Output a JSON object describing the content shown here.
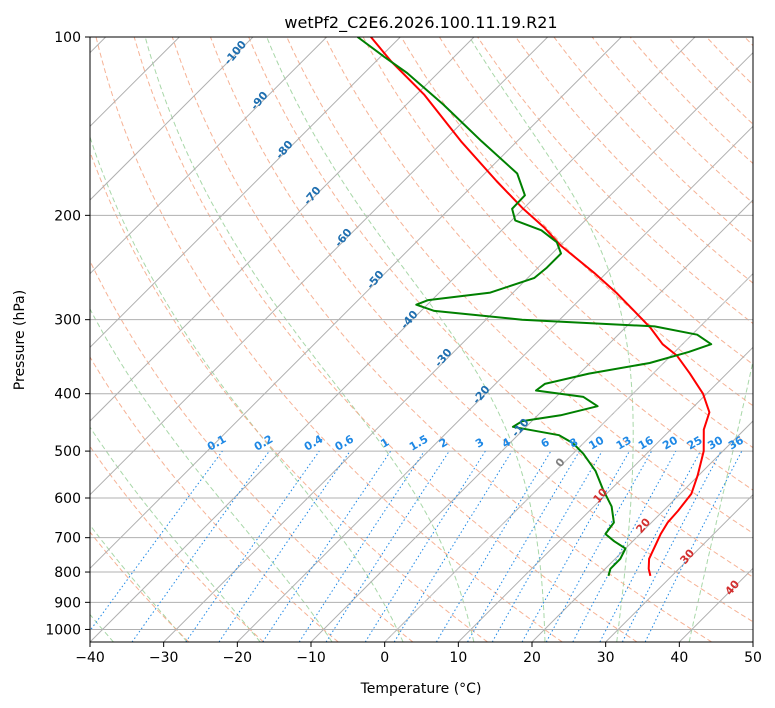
{
  "chart_data": {
    "type": "line",
    "title": "wetPf2_C2E6.2026.100.11.19.R21",
    "xlabel": "Temperature (°C)",
    "ylabel": "Pressure (hPa)",
    "xlim": [
      -40,
      50
    ],
    "ylim": [
      1050,
      100
    ],
    "y_scale": "log",
    "x_ticks": [
      -40,
      -30,
      -20,
      -10,
      0,
      10,
      20,
      30,
      40,
      50
    ],
    "y_ticks": [
      100,
      200,
      300,
      400,
      500,
      600,
      700,
      800,
      900,
      1000
    ],
    "skew_degrees": 45,
    "grid": true,
    "series": [
      {
        "color": "#ff0000",
        "points": [
          {
            "p": 812,
            "t": 27.1
          },
          {
            "p": 790,
            "t": 25.9
          },
          {
            "p": 760,
            "t": 24.6
          },
          {
            "p": 720,
            "t": 23.6
          },
          {
            "p": 690,
            "t": 22.8
          },
          {
            "p": 660,
            "t": 22.2
          },
          {
            "p": 630,
            "t": 22.0
          },
          {
            "p": 590,
            "t": 21.5
          },
          {
            "p": 550,
            "t": 19.9
          },
          {
            "p": 500,
            "t": 17.4
          },
          {
            "p": 460,
            "t": 14.5
          },
          {
            "p": 430,
            "t": 12.9
          },
          {
            "p": 400,
            "t": 9.5
          },
          {
            "p": 370,
            "t": 5.0
          },
          {
            "p": 345,
            "t": 0.8
          },
          {
            "p": 330,
            "t": -2.7
          },
          {
            "p": 310,
            "t": -6.5
          },
          {
            "p": 295,
            "t": -9.9
          },
          {
            "p": 270,
            "t": -16.0
          },
          {
            "p": 250,
            "t": -21.7
          },
          {
            "p": 225,
            "t": -29.9
          },
          {
            "p": 210,
            "t": -34.5
          },
          {
            "p": 195,
            "t": -40.0
          },
          {
            "p": 175,
            "t": -47.4
          },
          {
            "p": 150,
            "t": -57.6
          },
          {
            "p": 125,
            "t": -69.0
          },
          {
            "p": 110,
            "t": -77.9
          },
          {
            "p": 100,
            "t": -84.0
          }
        ]
      },
      {
        "color": "#008000",
        "points": [
          {
            "p": 812,
            "t": 21.4
          },
          {
            "p": 790,
            "t": 20.7
          },
          {
            "p": 760,
            "t": 20.7
          },
          {
            "p": 730,
            "t": 20.0
          },
          {
            "p": 710,
            "t": 17.5
          },
          {
            "p": 690,
            "t": 15.3
          },
          {
            "p": 660,
            "t": 14.9
          },
          {
            "p": 620,
            "t": 12.4
          },
          {
            "p": 580,
            "t": 8.9
          },
          {
            "p": 540,
            "t": 5.4
          },
          {
            "p": 505,
            "t": 1.4
          },
          {
            "p": 485,
            "t": -1.4
          },
          {
            "p": 470,
            "t": -4.4
          },
          {
            "p": 455,
            "t": -11.8
          },
          {
            "p": 445,
            "t": -11.3
          },
          {
            "p": 435,
            "t": -6.9
          },
          {
            "p": 420,
            "t": -3.1
          },
          {
            "p": 405,
            "t": -6.3
          },
          {
            "p": 395,
            "t": -13.6
          },
          {
            "p": 385,
            "t": -13.3
          },
          {
            "p": 370,
            "t": -8.7
          },
          {
            "p": 355,
            "t": -1.9
          },
          {
            "p": 340,
            "t": 1.9
          },
          {
            "p": 330,
            "t": 3.9
          },
          {
            "p": 318,
            "t": 0.7
          },
          {
            "p": 308,
            "t": -6.2
          },
          {
            "p": 300,
            "t": -25.1
          },
          {
            "p": 290,
            "t": -38.2
          },
          {
            "p": 283,
            "t": -41.5
          },
          {
            "p": 278,
            "t": -40.5
          },
          {
            "p": 270,
            "t": -33.1
          },
          {
            "p": 255,
            "t": -29.1
          },
          {
            "p": 245,
            "t": -28.8
          },
          {
            "p": 232,
            "t": -28.8
          },
          {
            "p": 222,
            "t": -30.9
          },
          {
            "p": 212,
            "t": -34.6
          },
          {
            "p": 204,
            "t": -39.5
          },
          {
            "p": 195,
            "t": -41.5
          },
          {
            "p": 185,
            "t": -41.6
          },
          {
            "p": 170,
            "t": -45.6
          },
          {
            "p": 150,
            "t": -54.8
          },
          {
            "p": 130,
            "t": -65.0
          },
          {
            "p": 115,
            "t": -74.2
          },
          {
            "p": 108,
            "t": -79.5
          },
          {
            "p": 100,
            "t": -85.8
          }
        ]
      }
    ],
    "dry_adiabat_labels": [
      "-100",
      "-90",
      "-80",
      "-70",
      "-60",
      "-50",
      "-40",
      "-30",
      "-20",
      "-10",
      "0",
      "10",
      "20",
      "30",
      "40"
    ],
    "dry_adiabat_label_values": [
      -100,
      -90,
      -80,
      -70,
      -60,
      -50,
      -40,
      -30,
      -20,
      -10,
      0,
      10,
      20,
      30,
      40
    ],
    "mixing_ratio_labels": [
      "0.1",
      "0.2",
      "0.4",
      "0.6",
      "1",
      "1.5",
      "2",
      "3",
      "4",
      "6",
      "8",
      "10",
      "13",
      "16",
      "20",
      "25",
      "30",
      "36"
    ],
    "mixing_ratio_values": [
      0.1,
      0.2,
      0.4,
      0.6,
      1,
      1.5,
      2,
      3,
      4,
      6,
      8,
      10,
      13,
      16,
      20,
      25,
      30,
      36
    ],
    "colors": {
      "temperature": "#ff0000",
      "dewpoint": "#008000",
      "isotherm": "#b0b0b0",
      "dry_adiabat": "#f4a582",
      "moist_adiabat": "#9ed39e",
      "mixing_ratio": "#1e88e5",
      "label_cold": "#1f6fb0",
      "label_zero": "#808080",
      "label_warm": "#d32f2f"
    }
  }
}
